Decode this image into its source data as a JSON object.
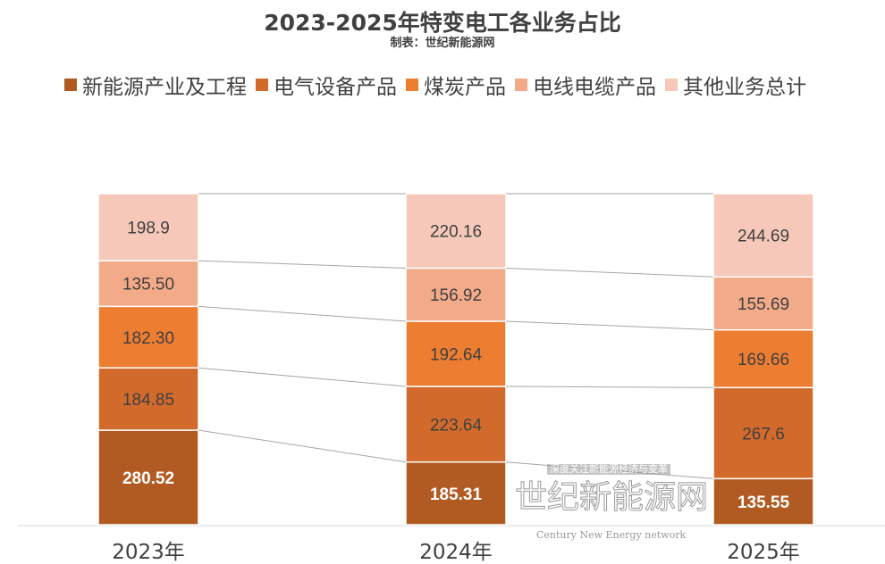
{
  "chart_data": {
    "type": "bar",
    "stacked": "percent",
    "title": "2023-2025年特变电工各业务占比",
    "subtitle": "制表：世纪新能源网",
    "categories": [
      "2023年",
      "2024年",
      "2025年"
    ],
    "series": [
      {
        "name": "新能源产业及工程",
        "color": "#B15A22",
        "values": [
          280.52,
          185.31,
          135.55
        ]
      },
      {
        "name": "电气设备产品",
        "color": "#D26A2B",
        "values": [
          184.85,
          223.64,
          267.6
        ]
      },
      {
        "name": "煤炭产品",
        "color": "#ED7D31",
        "values": [
          182.3,
          192.64,
          169.66
        ]
      },
      {
        "name": "电线电缆产品",
        "color": "#F2AA88",
        "values": [
          135.5,
          156.92,
          155.69
        ]
      },
      {
        "name": "其他业务总计",
        "color": "#F5C8B9",
        "values": [
          198.9,
          220.16,
          244.69
        ]
      }
    ],
    "labels": [
      [
        "280.52",
        "185.31",
        "135.55"
      ],
      [
        "184.85",
        "223.64",
        "267.6"
      ],
      [
        "182.30",
        "192.64",
        "169.66"
      ],
      [
        "135.50",
        "156.92",
        "155.69"
      ],
      [
        "198.9",
        "220.16",
        "244.69"
      ]
    ],
    "legend": "top",
    "grid": false
  },
  "watermark": {
    "slogan": "深度关注新能源经济与变革",
    "name": "世纪新能源网",
    "name_en": "Century New Energy network"
  }
}
